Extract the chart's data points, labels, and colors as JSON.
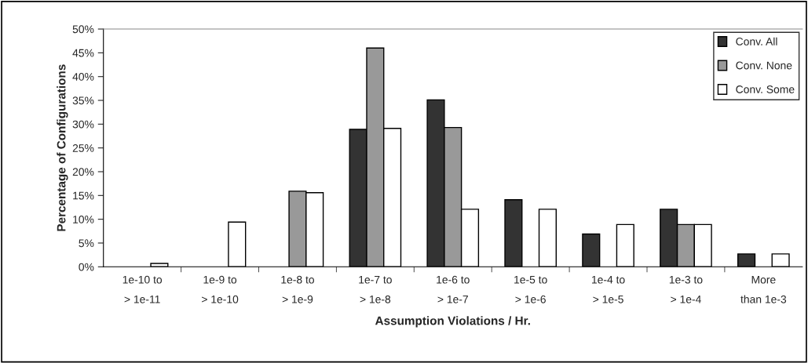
{
  "chart_data": {
    "type": "bar",
    "xlabel": "Assumption Violations / Hr.",
    "ylabel": "Percentage of Configurations",
    "categories": [
      "1e-10 to\n> 1e-11",
      "1e-9 to\n> 1e-10",
      "1e-8 to\n> 1e-9",
      "1e-7 to\n> 1e-8",
      "1e-6 to\n> 1e-7",
      "1e-5 to\n> 1e-6",
      "1e-4 to\n> 1e-5",
      "1e-3 to\n> 1e-4",
      "More\nthan 1e-3"
    ],
    "series": [
      {
        "name": "Conv. All",
        "color": "#333333",
        "values": [
          null,
          null,
          null,
          28.9,
          35.1,
          14.1,
          6.9,
          12.1,
          2.7
        ]
      },
      {
        "name": "Conv. None",
        "color": "#999999",
        "values": [
          null,
          null,
          15.9,
          46.0,
          29.3,
          null,
          null,
          8.9,
          null
        ]
      },
      {
        "name": "Conv. Some",
        "color": "#ffffff",
        "values": [
          0.7,
          9.4,
          15.6,
          29.1,
          12.1,
          12.1,
          8.9,
          8.9,
          2.7
        ]
      }
    ],
    "ylim": [
      0,
      50
    ],
    "yticks": [
      {
        "value": 0,
        "label": "0%"
      },
      {
        "value": 5,
        "label": "5%"
      },
      {
        "value": 10,
        "label": "10%"
      },
      {
        "value": 15,
        "label": "15%"
      },
      {
        "value": 20,
        "label": "20%"
      },
      {
        "value": 25,
        "label": "25%"
      },
      {
        "value": 30,
        "label": "30%"
      },
      {
        "value": 35,
        "label": "35%"
      },
      {
        "value": 40,
        "label": "40%"
      },
      {
        "value": 45,
        "label": "45%"
      },
      {
        "value": 50,
        "label": "50%"
      }
    ],
    "grid": false,
    "legend": "top right"
  }
}
